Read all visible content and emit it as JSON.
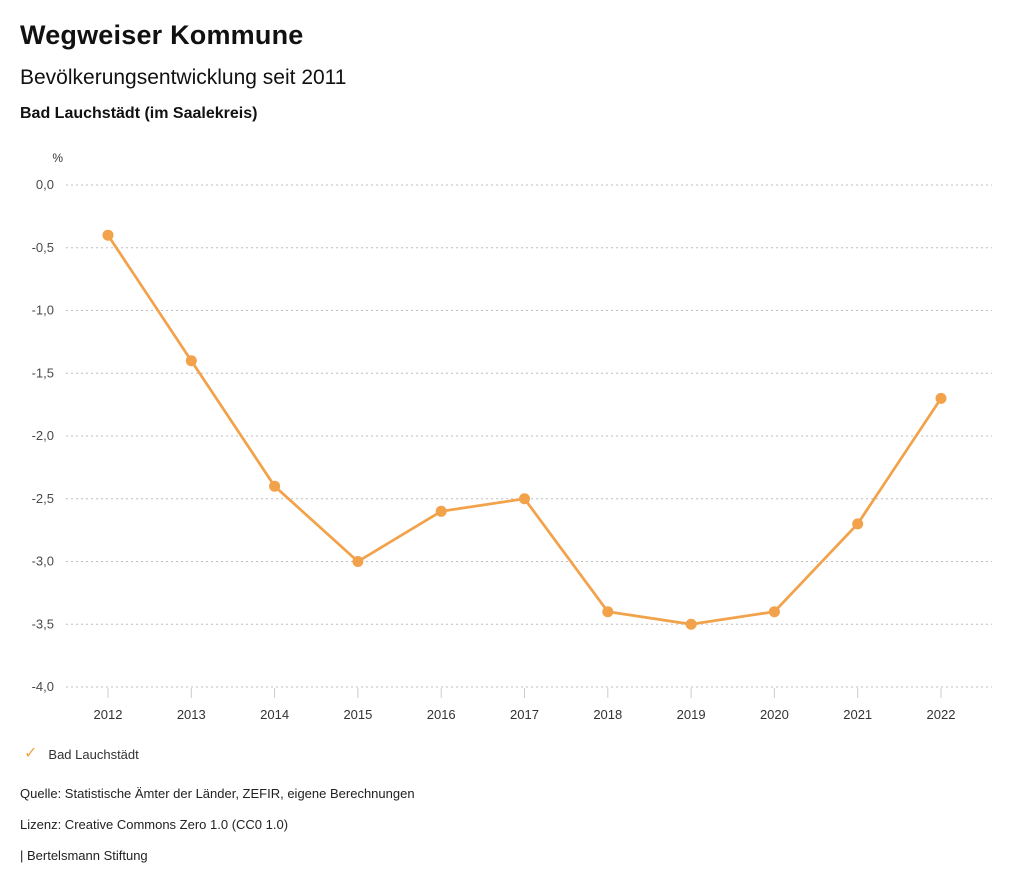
{
  "header": {
    "title": "Wegweiser Kommune",
    "subtitle": "Bevölkerungsentwicklung seit 2011",
    "region": "Bad Lauchstädt (im Saalekreis)"
  },
  "chart_data": {
    "type": "line",
    "title": "Bevölkerungsentwicklung seit 2011 — Bad Lauchstädt (im Saalekreis)",
    "ylabel": "%",
    "xlabel": "",
    "x": [
      2012,
      2013,
      2014,
      2015,
      2016,
      2017,
      2018,
      2019,
      2020,
      2021,
      2022
    ],
    "series": [
      {
        "name": "Bad Lauchstädt",
        "values": [
          -0.4,
          -1.4,
          -2.4,
          -3.0,
          -2.6,
          -2.5,
          -3.4,
          -3.5,
          -3.4,
          -2.7,
          -1.7
        ]
      }
    ],
    "ylim": [
      -4.0,
      0.0
    ],
    "ytick_step": 0.5,
    "ytick_labels": [
      "0,0",
      "-0,5",
      "-1,0",
      "-1,5",
      "-2,0",
      "-2,5",
      "-3,0",
      "-3,5",
      "-4,0"
    ],
    "grid": "horizontal-dotted",
    "legend_position": "bottom-left",
    "line_color": "#F2A24A",
    "marker": "circle"
  },
  "legend": {
    "items": [
      {
        "label": "Bad Lauchstädt",
        "glyph": "✓",
        "color": "#F2A24A"
      }
    ]
  },
  "footer": {
    "source": "Quelle: Statistische Ämter der Länder, ZEFIR, eigene Berechnungen",
    "license": "Lizenz: Creative Commons Zero 1.0 (CC0 1.0)",
    "brand": "| Bertelsmann Stiftung"
  }
}
